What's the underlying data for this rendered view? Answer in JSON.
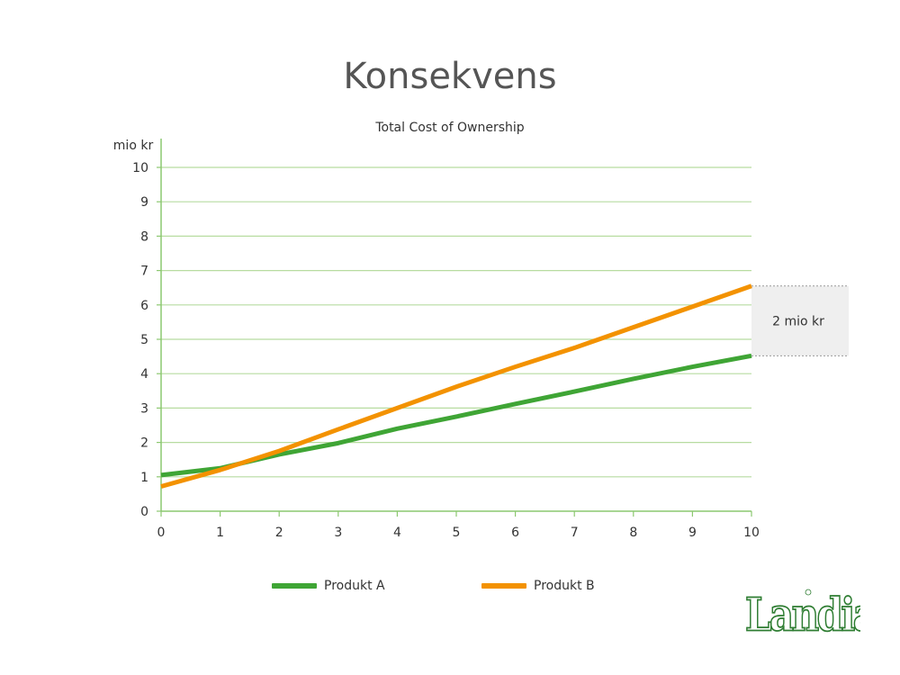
{
  "slide": {
    "title": "Konsekvens"
  },
  "logo": {
    "text": "Landia"
  },
  "colors": {
    "produkt_a": "#3fa535",
    "produkt_b": "#f39200",
    "grid": "#b7dca0",
    "axis": "#8cc870",
    "callout_bg": "#efefef"
  },
  "chart_data": {
    "type": "line",
    "title": "Total Cost of Ownership",
    "ylabel": "mio kr",
    "xlabel": "",
    "xlim": [
      0,
      10
    ],
    "ylim": [
      0,
      10
    ],
    "x_ticks": [
      0,
      1,
      2,
      3,
      4,
      5,
      6,
      7,
      8,
      9,
      10
    ],
    "y_ticks": [
      0,
      1,
      2,
      3,
      4,
      5,
      6,
      7,
      8,
      9,
      10
    ],
    "grid": true,
    "legend": "bottom",
    "series": [
      {
        "name": "Produkt A",
        "x": [
          0,
          1,
          2,
          3,
          4,
          5,
          6,
          7,
          8,
          9,
          10
        ],
        "values": [
          1.05,
          1.25,
          1.65,
          1.98,
          2.4,
          2.75,
          3.12,
          3.48,
          3.85,
          4.2,
          4.52
        ]
      },
      {
        "name": "Produkt B",
        "x": [
          0,
          1,
          2,
          3,
          4,
          5,
          6,
          7,
          8,
          9,
          10
        ],
        "values": [
          0.72,
          1.2,
          1.75,
          2.38,
          3.0,
          3.62,
          4.2,
          4.75,
          5.35,
          5.95,
          6.55
        ]
      }
    ],
    "annotations": [
      {
        "text": "2 mio kr",
        "y_from": 4.52,
        "y_to": 6.55
      }
    ]
  }
}
